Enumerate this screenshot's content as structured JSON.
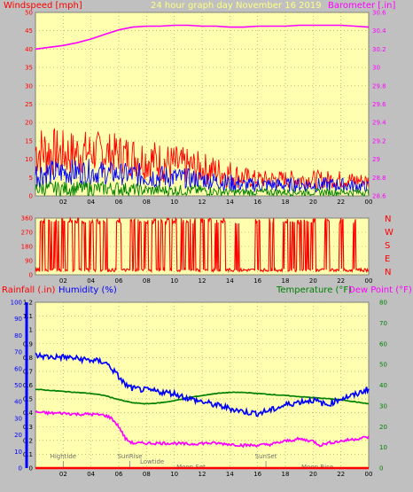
{
  "chart_data": [
    {
      "type": "line",
      "title": "24 hour graph day   November 16 2019",
      "ylabel": "Windspeed [mph]",
      "y2label": "Barometer [.in]",
      "xticks": [
        "02",
        "04",
        "06",
        "08",
        "10",
        "12",
        "14",
        "16",
        "18",
        "20",
        "22",
        "00"
      ],
      "ylim": [
        0,
        50
      ],
      "yticks": [
        "0",
        "5",
        "10",
        "15",
        "20",
        "25",
        "30",
        "35",
        "40",
        "45",
        "50"
      ],
      "y2lim": [
        28.6,
        30.6
      ],
      "y2ticks": [
        "28.6",
        "28.8",
        "29",
        "29.2",
        "29.4",
        "29.6",
        "29.8",
        "30",
        "30.2",
        "30.4",
        "30.6"
      ],
      "series": [
        {
          "name": "Windspeed [mph]",
          "color": "#ff0000",
          "type": "band",
          "x": [
            0,
            2,
            4,
            6,
            8,
            10,
            12,
            14,
            15,
            16,
            18,
            20,
            22,
            24
          ],
          "low": [
            5,
            5,
            6,
            6,
            4,
            3,
            3,
            2,
            2,
            2,
            2,
            2,
            2,
            2
          ],
          "high": [
            20,
            18,
            18,
            17,
            16,
            14,
            12,
            10,
            8,
            7,
            7,
            7,
            7,
            6
          ]
        },
        {
          "color": "#0000ff",
          "type": "band",
          "x": [
            0,
            2,
            4,
            6,
            8,
            10,
            12,
            14,
            15,
            16,
            18,
            20,
            22,
            24
          ],
          "low": [
            2,
            3,
            3,
            3,
            2,
            2,
            2,
            1,
            1,
            1,
            1,
            1,
            1,
            1
          ],
          "high": [
            10,
            10,
            10,
            9,
            9,
            8,
            7,
            6,
            5,
            5,
            5,
            5,
            5,
            4
          ]
        },
        {
          "color": "#008000",
          "type": "band",
          "x": [
            0,
            2,
            4,
            6,
            8,
            10,
            12,
            14,
            16,
            18,
            20,
            22,
            24
          ],
          "low": [
            0,
            0,
            0,
            0,
            0,
            0,
            0,
            0,
            0,
            0,
            0,
            0,
            0
          ],
          "high": [
            4,
            4,
            4,
            4,
            3,
            3,
            3,
            2,
            2,
            2,
            2,
            2,
            2
          ]
        },
        {
          "name": "Barometer [.in]",
          "color": "#ff00ff",
          "axis": "right",
          "x": [
            0,
            1,
            2,
            3,
            4,
            5,
            6,
            7,
            8,
            9,
            10,
            11,
            12,
            13,
            14,
            15,
            16,
            17,
            18,
            19,
            20,
            21,
            22,
            23,
            24
          ],
          "y": [
            30.2,
            30.22,
            30.24,
            30.27,
            30.31,
            30.36,
            30.41,
            30.44,
            30.45,
            30.45,
            30.46,
            30.46,
            30.45,
            30.45,
            30.44,
            30.44,
            30.45,
            30.45,
            30.45,
            30.46,
            30.46,
            30.46,
            30.46,
            30.45,
            30.44
          ]
        }
      ]
    },
    {
      "type": "line",
      "ylabels": [
        "N",
        "W",
        "S",
        "E",
        "N"
      ],
      "ylim": [
        0,
        360
      ],
      "yticks": [
        "0",
        "90",
        "180",
        "270",
        "360"
      ],
      "xticks": [
        "02",
        "04",
        "06",
        "08",
        "10",
        "12",
        "14",
        "16",
        "18",
        "20",
        "22",
        "00"
      ],
      "series": [
        {
          "color": "#ff0000",
          "type": "noise",
          "x": [
            0,
            24
          ],
          "baseline": [
            20,
            40
          ],
          "spikes_to": 360,
          "spike_hours": [
            0.5,
            1,
            1.5,
            2,
            2.5,
            3,
            3.5,
            4,
            4.5,
            5,
            6,
            7,
            7.5,
            8,
            8.5,
            9,
            9.5,
            10,
            10.5,
            11,
            11.5,
            12,
            12.5,
            13,
            13.5,
            14.5,
            16,
            17,
            18,
            18.5,
            19,
            19.5,
            20,
            21,
            22,
            23
          ]
        }
      ]
    },
    {
      "type": "line",
      "ylabel": "Rainfall (.in)",
      "ylabel2": "Humidity (%)",
      "y2label": "Temperature (°F)",
      "y3label": "Dew Point (°F)",
      "xticks": [
        "02",
        "04",
        "06",
        "08",
        "10",
        "12",
        "14",
        "16",
        "18",
        "20",
        "22",
        "00"
      ],
      "ylim": [
        0,
        1.2
      ],
      "rain_ticks": [
        "0",
        "0.1",
        "0.2",
        "0.3",
        "0.4",
        "0.5",
        "0.6",
        "0.7",
        "0.8",
        "0.9",
        "1",
        "1.1",
        "1.2"
      ],
      "hum_ticks": [
        "0",
        "10",
        "20",
        "30",
        "40",
        "50",
        "60",
        "70",
        "80",
        "90",
        "100"
      ],
      "y2lim": [
        0,
        80
      ],
      "temp_ticks": [
        "0",
        "10",
        "20",
        "30",
        "40",
        "50",
        "60",
        "70",
        "80"
      ],
      "annotations": [
        {
          "text": "Hightide",
          "hour": 2.0,
          "row": 0
        },
        {
          "text": "SunRise",
          "hour": 6.8,
          "row": 0
        },
        {
          "text": "Lowtide",
          "hour": 8.4,
          "row": 1
        },
        {
          "text": "Moon Set",
          "hour": 11.2,
          "row": 2
        },
        {
          "text": "SunSet",
          "hour": 16.6,
          "row": 0
        },
        {
          "text": "Moon Rise",
          "hour": 20.3,
          "row": 2
        }
      ],
      "series": [
        {
          "name": "Temperature (°F)",
          "color": "#008000",
          "axis": "right",
          "x": [
            0,
            1,
            2,
            3,
            4,
            5,
            6,
            7,
            8,
            9,
            10,
            11,
            12,
            13,
            14,
            15,
            16,
            17,
            18,
            19,
            20,
            21,
            22,
            23,
            24
          ],
          "y": [
            38,
            37.5,
            37,
            36.5,
            36,
            35,
            33,
            31.5,
            31,
            31.5,
            32.5,
            34,
            35,
            36,
            36.5,
            36.5,
            36,
            35.5,
            35,
            34.5,
            34,
            33.5,
            33,
            32,
            31
          ]
        },
        {
          "name": "Dew Point (°F)",
          "color": "#ff00ff",
          "axis": "right",
          "x": [
            0,
            1,
            2,
            3,
            4,
            5,
            5.5,
            6,
            6.5,
            7,
            8,
            9,
            10,
            11,
            12,
            13,
            14,
            15,
            16,
            17,
            18,
            19,
            20,
            20.5,
            21,
            22,
            23,
            24
          ],
          "y": [
            27,
            26.5,
            26.5,
            26,
            26,
            25.5,
            24,
            20,
            14,
            12,
            12,
            12,
            12,
            11.5,
            12,
            12,
            11.5,
            11,
            11,
            11.5,
            13,
            14,
            13,
            11,
            12,
            13,
            14,
            15
          ]
        },
        {
          "name": "Humidity (%)",
          "color": "#0000ff",
          "axis": "hum",
          "x": [
            0,
            1,
            2,
            3,
            4,
            5,
            5.5,
            6,
            6.5,
            7,
            8,
            9,
            10,
            11,
            12,
            13,
            14,
            15,
            16,
            17,
            18,
            19,
            20,
            21,
            22,
            23,
            24
          ],
          "y": [
            68,
            67,
            67,
            66,
            65,
            64,
            60,
            55,
            50,
            48,
            47,
            46,
            45,
            42,
            40,
            38,
            36,
            34,
            33,
            35,
            38,
            40,
            41,
            38,
            42,
            44,
            48
          ]
        },
        {
          "name": "Rainfall (.in)",
          "color": "#ff0000",
          "axis": "left",
          "x": [
            0,
            24
          ],
          "y": [
            0,
            0
          ]
        }
      ]
    }
  ]
}
